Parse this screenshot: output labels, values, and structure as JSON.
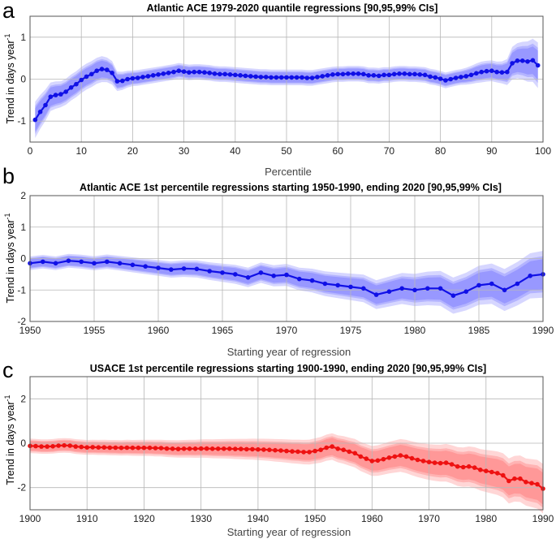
{
  "chart_data": [
    {
      "panel": "a",
      "type": "line",
      "title": "Atlantic ACE 1979-2020 quantile regressions [90,95,99% CIs]",
      "xlabel": "Percentile",
      "ylabel": "Trend in days year",
      "ylabel_sup": "-1",
      "xlim": [
        0,
        100
      ],
      "ylim": [
        -1.5,
        1.5
      ],
      "xticks": [
        0,
        10,
        20,
        30,
        40,
        50,
        60,
        70,
        80,
        90,
        100
      ],
      "yticks": [
        -1,
        0,
        1
      ],
      "color": "#1010e6",
      "band_color": "#6d6dff",
      "x": [
        1,
        2,
        3,
        4,
        5,
        6,
        7,
        8,
        9,
        10,
        11,
        12,
        13,
        14,
        15,
        16,
        17,
        18,
        19,
        20,
        21,
        22,
        23,
        24,
        25,
        26,
        27,
        28,
        29,
        30,
        31,
        32,
        33,
        34,
        35,
        36,
        37,
        38,
        39,
        40,
        41,
        42,
        43,
        44,
        45,
        46,
        47,
        48,
        49,
        50,
        51,
        52,
        53,
        54,
        55,
        56,
        57,
        58,
        59,
        60,
        61,
        62,
        63,
        64,
        65,
        66,
        67,
        68,
        69,
        70,
        71,
        72,
        73,
        74,
        75,
        76,
        77,
        78,
        79,
        80,
        81,
        82,
        83,
        84,
        85,
        86,
        87,
        88,
        89,
        90,
        91,
        92,
        93,
        94,
        95,
        96,
        97,
        98,
        99
      ],
      "values": [
        -0.97,
        -0.78,
        -0.62,
        -0.42,
        -0.38,
        -0.36,
        -0.3,
        -0.2,
        -0.12,
        -0.02,
        0.06,
        0.12,
        0.2,
        0.24,
        0.22,
        0.15,
        -0.05,
        -0.04,
        0.0,
        0.02,
        0.03,
        0.05,
        0.07,
        0.09,
        0.11,
        0.13,
        0.15,
        0.17,
        0.2,
        0.18,
        0.16,
        0.17,
        0.17,
        0.16,
        0.15,
        0.13,
        0.12,
        0.12,
        0.11,
        0.1,
        0.09,
        0.08,
        0.07,
        0.06,
        0.05,
        0.05,
        0.04,
        0.04,
        0.04,
        0.04,
        0.04,
        0.04,
        0.04,
        0.03,
        0.03,
        0.05,
        0.07,
        0.09,
        0.11,
        0.12,
        0.12,
        0.13,
        0.13,
        0.13,
        0.12,
        0.09,
        0.09,
        0.08,
        0.1,
        0.1,
        0.12,
        0.13,
        0.13,
        0.12,
        0.12,
        0.11,
        0.1,
        0.06,
        0.04,
        0.01,
        -0.03,
        0.0,
        0.03,
        0.05,
        0.07,
        0.1,
        0.14,
        0.17,
        0.19,
        0.2,
        0.17,
        0.16,
        0.17,
        0.38,
        0.44,
        0.44,
        0.42,
        0.45,
        0.33
      ],
      "ci_half_width_90": [
        0.28,
        0.26,
        0.24,
        0.22,
        0.21,
        0.2,
        0.2,
        0.2,
        0.2,
        0.2,
        0.2,
        0.2,
        0.2,
        0.2,
        0.19,
        0.18,
        0.15,
        0.14,
        0.13,
        0.12,
        0.12,
        0.12,
        0.12,
        0.12,
        0.12,
        0.12,
        0.12,
        0.12,
        0.12,
        0.12,
        0.12,
        0.12,
        0.12,
        0.12,
        0.12,
        0.12,
        0.12,
        0.12,
        0.12,
        0.12,
        0.12,
        0.12,
        0.12,
        0.12,
        0.12,
        0.12,
        0.12,
        0.12,
        0.12,
        0.12,
        0.12,
        0.12,
        0.12,
        0.12,
        0.12,
        0.12,
        0.12,
        0.12,
        0.12,
        0.12,
        0.12,
        0.12,
        0.12,
        0.12,
        0.12,
        0.12,
        0.12,
        0.12,
        0.12,
        0.12,
        0.12,
        0.12,
        0.12,
        0.12,
        0.12,
        0.12,
        0.12,
        0.12,
        0.12,
        0.12,
        0.12,
        0.12,
        0.12,
        0.12,
        0.13,
        0.14,
        0.15,
        0.16,
        0.16,
        0.16,
        0.16,
        0.17,
        0.2,
        0.25,
        0.27,
        0.29,
        0.31,
        0.33,
        0.35
      ]
    },
    {
      "panel": "b",
      "type": "line",
      "title": "Atlantic ACE 1st percentile regressions starting 1950-1990, ending 2020 [90,95,99% CIs]",
      "xlabel": "Starting year of regression",
      "ylabel": "Trend in days year",
      "ylabel_sup": "-1",
      "xlim": [
        1950,
        1990
      ],
      "ylim": [
        -2,
        2
      ],
      "xticks": [
        1950,
        1955,
        1960,
        1965,
        1970,
        1975,
        1980,
        1985,
        1990
      ],
      "yticks": [
        -2,
        -1,
        0,
        1,
        2
      ],
      "color": "#1010e6",
      "band_color": "#6d6dff",
      "x": [
        1950,
        1951,
        1952,
        1953,
        1954,
        1955,
        1956,
        1957,
        1958,
        1959,
        1960,
        1961,
        1962,
        1963,
        1964,
        1965,
        1966,
        1967,
        1968,
        1969,
        1970,
        1971,
        1972,
        1973,
        1974,
        1975,
        1976,
        1977,
        1978,
        1979,
        1980,
        1981,
        1982,
        1983,
        1984,
        1985,
        1986,
        1987,
        1988,
        1989,
        1990
      ],
      "values": [
        -0.15,
        -0.1,
        -0.15,
        -0.07,
        -0.1,
        -0.15,
        -0.1,
        -0.15,
        -0.2,
        -0.25,
        -0.3,
        -0.35,
        -0.32,
        -0.33,
        -0.4,
        -0.45,
        -0.5,
        -0.6,
        -0.45,
        -0.55,
        -0.52,
        -0.65,
        -0.7,
        -0.8,
        -0.85,
        -0.9,
        -0.95,
        -1.15,
        -1.05,
        -0.95,
        -1.0,
        -0.95,
        -0.95,
        -1.18,
        -1.05,
        -0.85,
        -0.8,
        -1.0,
        -0.8,
        -0.55,
        -0.5
      ]
    },
    {
      "panel": "c",
      "type": "line",
      "title": "USACE 1st percentile regressions starting 1900-1990, ending 2020 [90,95,99% CIs]",
      "xlabel": "Starting year of regression",
      "ylabel": "Trend in days year",
      "ylabel_sup": "-1",
      "xlim": [
        1900,
        1990
      ],
      "ylim": [
        -3,
        3
      ],
      "xticks": [
        1900,
        1910,
        1920,
        1930,
        1940,
        1950,
        1960,
        1970,
        1980,
        1990
      ],
      "yticks": [
        -2,
        0,
        2
      ],
      "color": "#ee1111",
      "band_color": "#ff6b6b",
      "x": [
        1900,
        1901,
        1902,
        1903,
        1904,
        1905,
        1906,
        1907,
        1908,
        1909,
        1910,
        1911,
        1912,
        1913,
        1914,
        1915,
        1916,
        1917,
        1918,
        1919,
        1920,
        1921,
        1922,
        1923,
        1924,
        1925,
        1926,
        1927,
        1928,
        1929,
        1930,
        1931,
        1932,
        1933,
        1934,
        1935,
        1936,
        1937,
        1938,
        1939,
        1940,
        1941,
        1942,
        1943,
        1944,
        1945,
        1946,
        1947,
        1948,
        1949,
        1950,
        1951,
        1952,
        1953,
        1954,
        1955,
        1956,
        1957,
        1958,
        1959,
        1960,
        1961,
        1962,
        1963,
        1964,
        1965,
        1966,
        1967,
        1968,
        1969,
        1970,
        1971,
        1972,
        1973,
        1974,
        1975,
        1976,
        1977,
        1978,
        1979,
        1980,
        1981,
        1982,
        1983,
        1984,
        1985,
        1986,
        1987,
        1988,
        1989,
        1990
      ],
      "values": [
        -0.12,
        -0.13,
        -0.15,
        -0.15,
        -0.14,
        -0.11,
        -0.1,
        -0.11,
        -0.15,
        -0.17,
        -0.19,
        -0.18,
        -0.19,
        -0.19,
        -0.2,
        -0.2,
        -0.21,
        -0.2,
        -0.21,
        -0.21,
        -0.21,
        -0.21,
        -0.22,
        -0.22,
        -0.24,
        -0.25,
        -0.26,
        -0.25,
        -0.25,
        -0.25,
        -0.24,
        -0.24,
        -0.25,
        -0.25,
        -0.25,
        -0.25,
        -0.26,
        -0.26,
        -0.27,
        -0.27,
        -0.28,
        -0.29,
        -0.3,
        -0.32,
        -0.33,
        -0.35,
        -0.37,
        -0.38,
        -0.4,
        -0.4,
        -0.35,
        -0.3,
        -0.2,
        -0.15,
        -0.25,
        -0.3,
        -0.38,
        -0.45,
        -0.6,
        -0.7,
        -0.8,
        -0.78,
        -0.72,
        -0.65,
        -0.6,
        -0.55,
        -0.6,
        -0.68,
        -0.75,
        -0.8,
        -0.85,
        -0.88,
        -0.9,
        -0.88,
        -0.95,
        -1.05,
        -1.08,
        -1.05,
        -1.1,
        -1.2,
        -1.25,
        -1.3,
        -1.35,
        -1.45,
        -1.7,
        -1.6,
        -1.6,
        -1.75,
        -1.8,
        -1.85,
        -2.05
      ]
    }
  ]
}
